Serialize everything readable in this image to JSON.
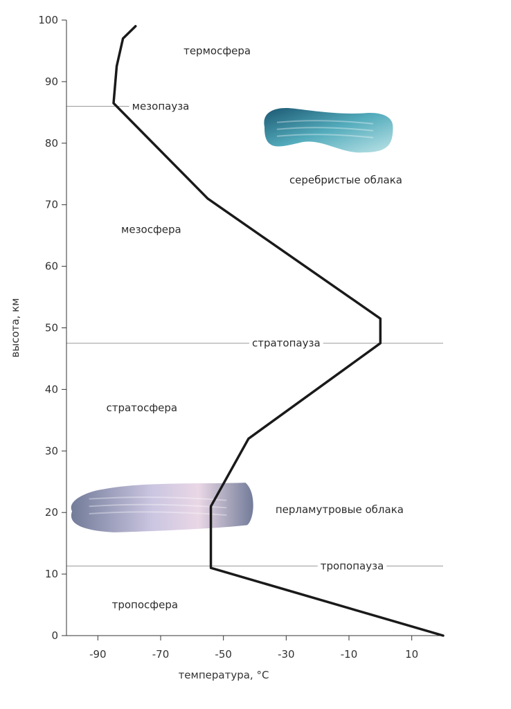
{
  "chart_data": {
    "type": "line",
    "title": "",
    "xlabel": "температура, °C",
    "ylabel": "высота, км",
    "xlim": [
      -100,
      20
    ],
    "ylim": [
      0,
      100
    ],
    "x_ticks": [
      -90,
      -70,
      -50,
      -30,
      -10,
      10
    ],
    "y_ticks": [
      0,
      10,
      20,
      30,
      40,
      50,
      60,
      70,
      80,
      90,
      100
    ],
    "grid": false,
    "series": [
      {
        "x": [
          20,
          -54,
          -54,
          -42,
          0,
          0,
          -55,
          -85,
          -84,
          -82,
          -78
        ],
        "y": [
          0,
          11,
          21,
          32,
          47.5,
          51.5,
          71,
          86.5,
          92.5,
          97,
          99
        ]
      }
    ],
    "reference_lines": [
      {
        "label": "мезопауза",
        "y": 86
      },
      {
        "label": "стратопауза",
        "y": 47.5
      },
      {
        "label": "тропопауза",
        "y": 11.3
      }
    ],
    "zones": [
      {
        "label": "термосфера",
        "x": -52,
        "y": 95
      },
      {
        "label": "мезосфера",
        "x": -73,
        "y": 66
      },
      {
        "label": "стратосфера",
        "x": -76,
        "y": 37
      },
      {
        "label": "тропосфера",
        "x": -75,
        "y": 5
      },
      {
        "label": "серебристые облака",
        "x": -11,
        "y": 74
      },
      {
        "label": "перламутровые облака",
        "x": -13,
        "y": 20.5
      }
    ],
    "clouds": [
      {
        "name": "noctilucent-clouds",
        "x": [
          -38,
          4
        ],
        "y": [
          78.5,
          86
        ],
        "colors": [
          "#0f4f6b",
          "#4aa7b8",
          "#b9e2e6"
        ]
      },
      {
        "name": "nacreous-clouds",
        "x": [
          -100,
          -40
        ],
        "y": [
          17,
          25
        ],
        "colors": [
          "#6b7594",
          "#c9c3e0",
          "#e8d5e4"
        ]
      }
    ],
    "colors": {
      "curve": "#1a1a1a",
      "ref_line": "#9a9a9a",
      "axis": "#333333"
    }
  }
}
